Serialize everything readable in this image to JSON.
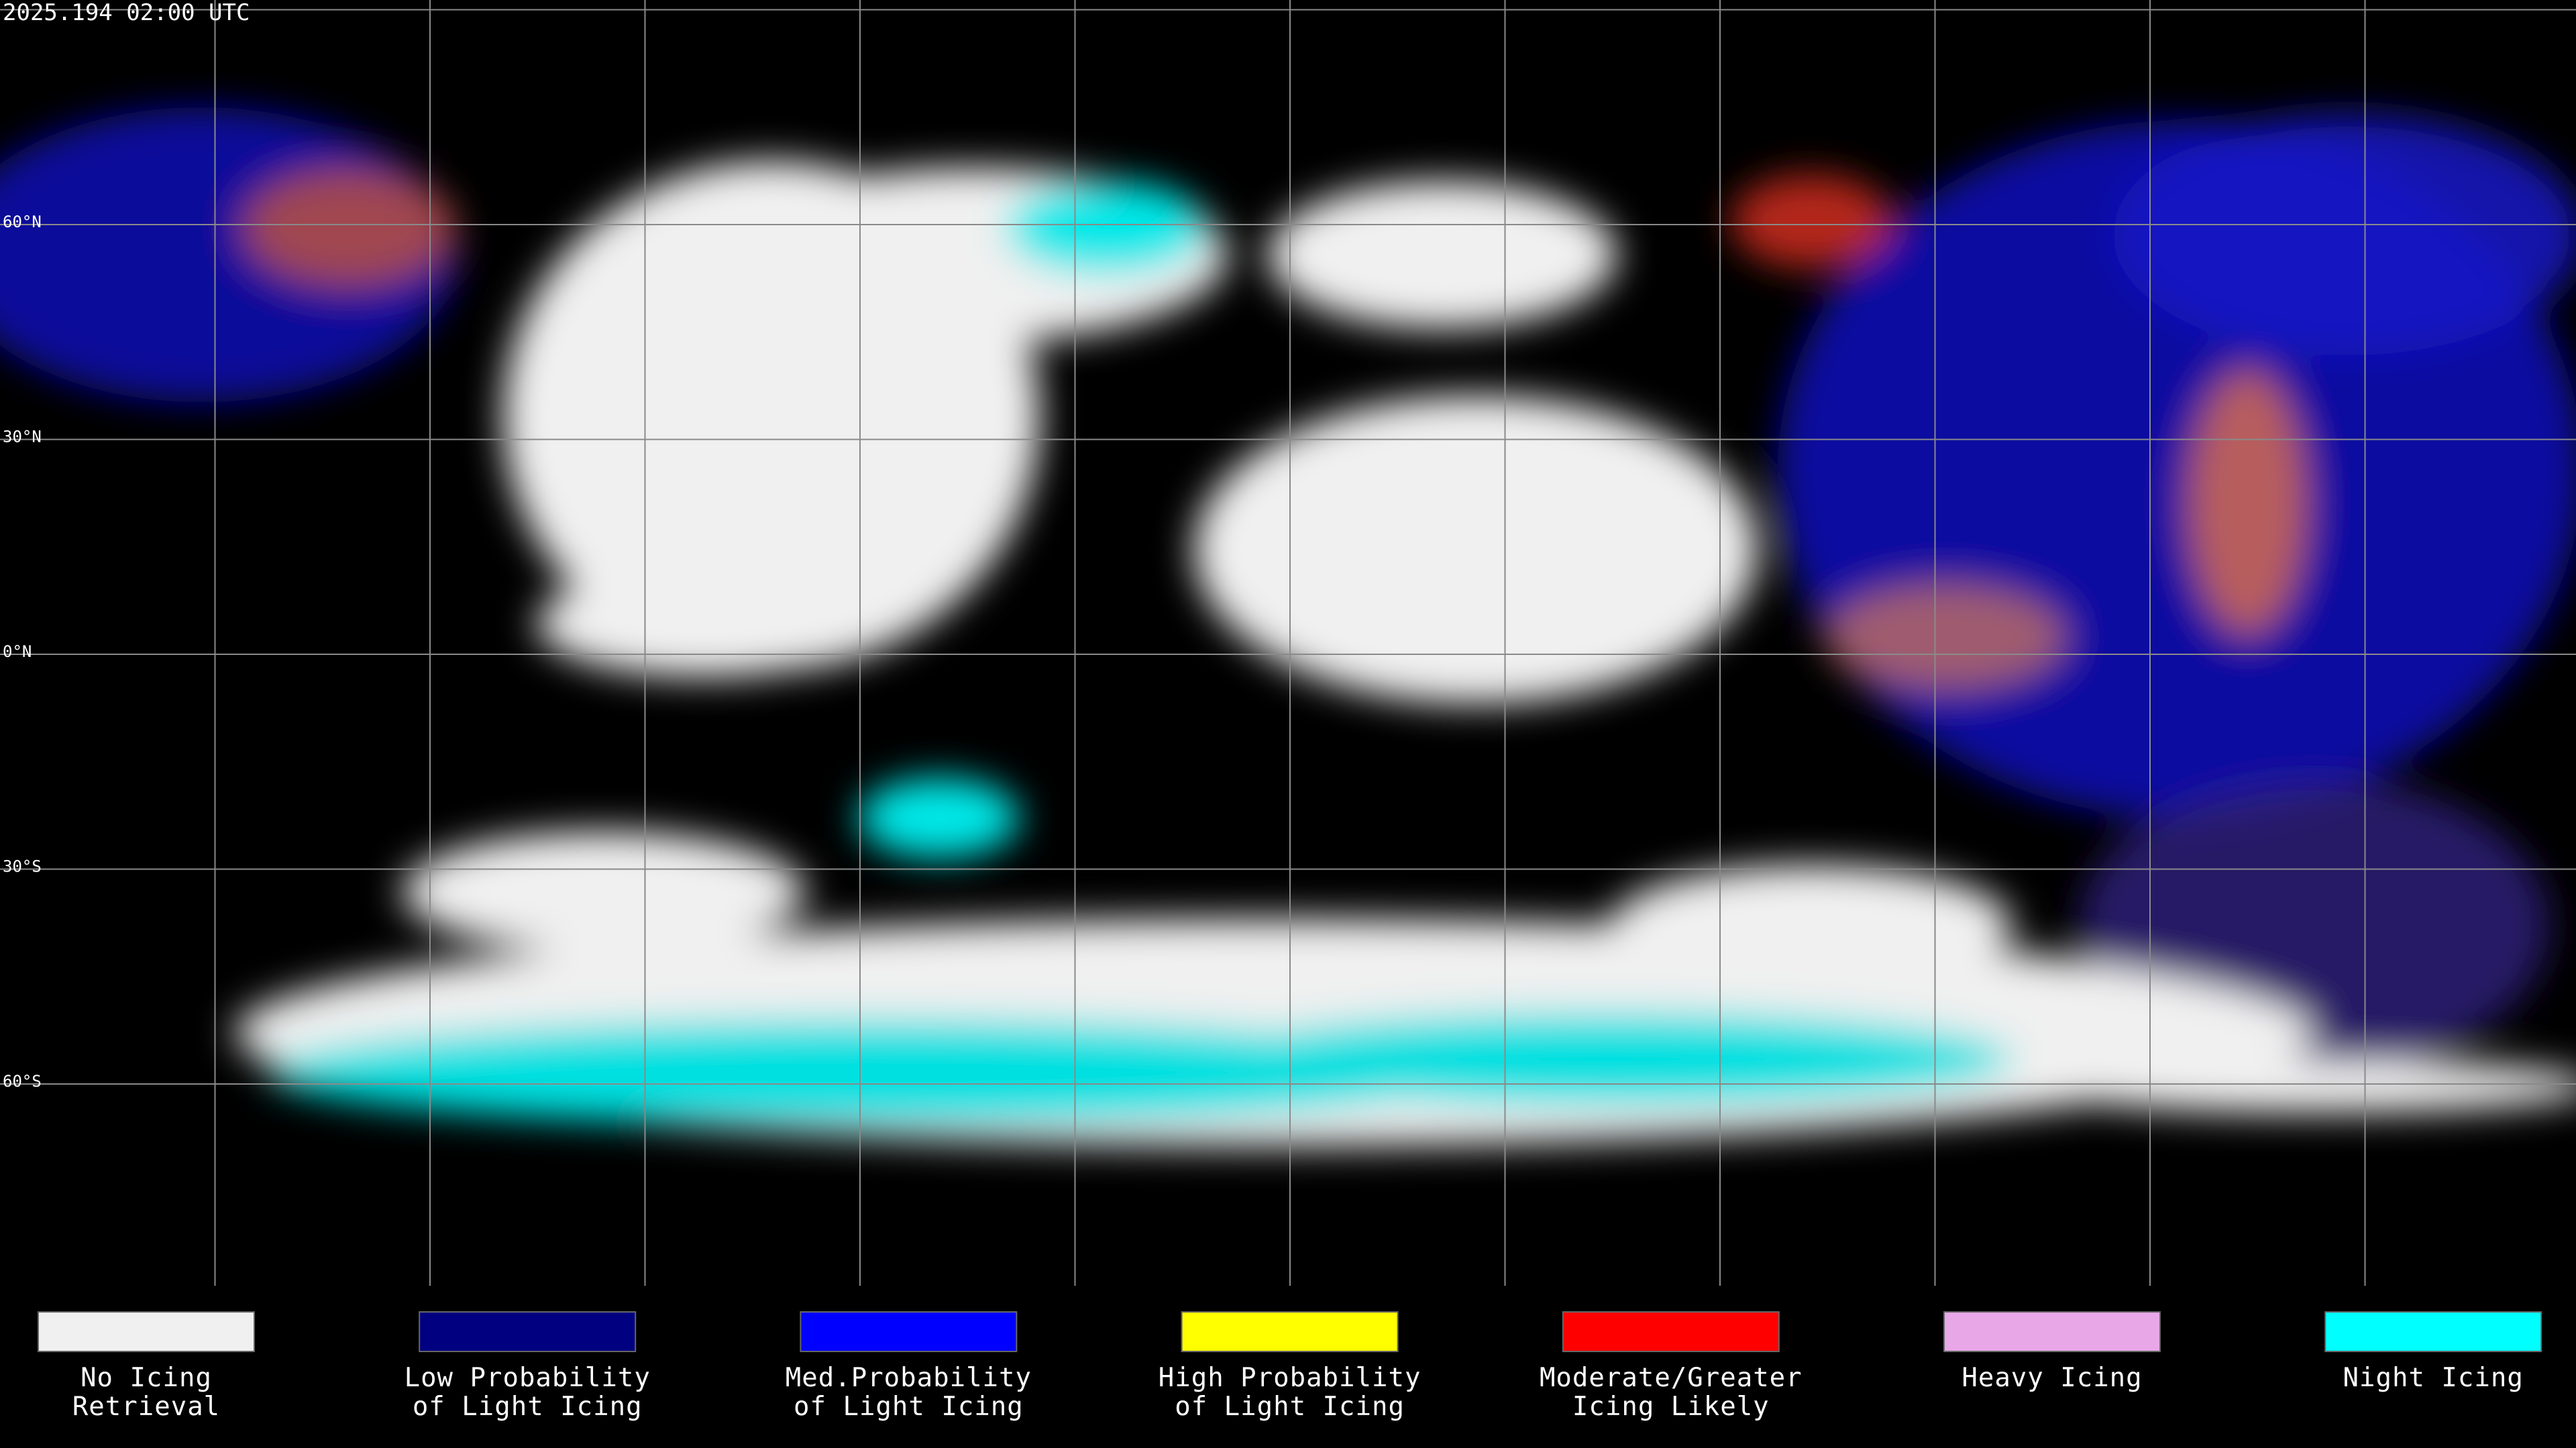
{
  "header": {
    "title": "2025.194 02:00 UTC"
  },
  "map": {
    "latitude_labels": [
      "60°N",
      "30°N",
      "0°N",
      "30°S",
      "60°S"
    ]
  },
  "legend": {
    "items": [
      {
        "lines": [
          "No Icing",
          "Retrieval"
        ],
        "color": "#f0f0f0"
      },
      {
        "lines": [
          "Low Probability",
          "of Light Icing"
        ],
        "color": "#000080"
      },
      {
        "lines": [
          "Med.Probability",
          "of Light Icing"
        ],
        "color": "#0000ff"
      },
      {
        "lines": [
          "High Probability",
          "of Light Icing"
        ],
        "color": "#ffff00"
      },
      {
        "lines": [
          "Moderate/Greater",
          "Icing Likely"
        ],
        "color": "#ff0000"
      },
      {
        "lines": [
          "Heavy Icing"
        ],
        "color": "#e8a8e8"
      },
      {
        "lines": [
          "Night Icing"
        ],
        "color": "#00ffff"
      }
    ]
  }
}
